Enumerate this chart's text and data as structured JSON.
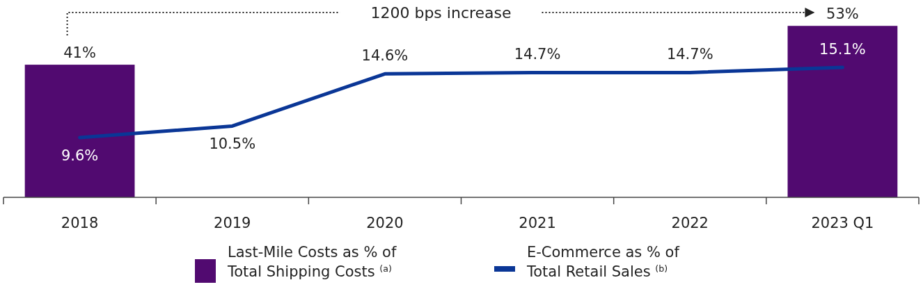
{
  "chart_data": {
    "type": "bar",
    "categories": [
      "2018",
      "2019",
      "2020",
      "2021",
      "2022",
      "2023 Q1"
    ],
    "ylim": [
      0,
      61
    ],
    "y2lim": [
      4.9,
      20.4
    ],
    "series": [
      {
        "name": "Last-Mile Costs as % of Total Shipping Costs $^{(a)}$",
        "color": "#510a70",
        "values": [
          41,
          null,
          null,
          null,
          null,
          53
        ],
        "value_labels": [
          "41%",
          null,
          null,
          null,
          null,
          "53%"
        ]
      },
      {
        "name": "E-Commerce as % of Total Retail Sales $^{(b)}$",
        "type": "line",
        "axis": "y2",
        "color": "#0a3696",
        "values": [
          9.6,
          10.5,
          14.6,
          14.7,
          14.7,
          15.1
        ],
        "value_labels": [
          "9.6%",
          "10.5%",
          "14.6%",
          "14.7%",
          "14.7%",
          "15.1%"
        ]
      }
    ],
    "annotations": [
      "1200 bps increase"
    ],
    "legend": "bottom",
    "tick_labels": "x"
  }
}
